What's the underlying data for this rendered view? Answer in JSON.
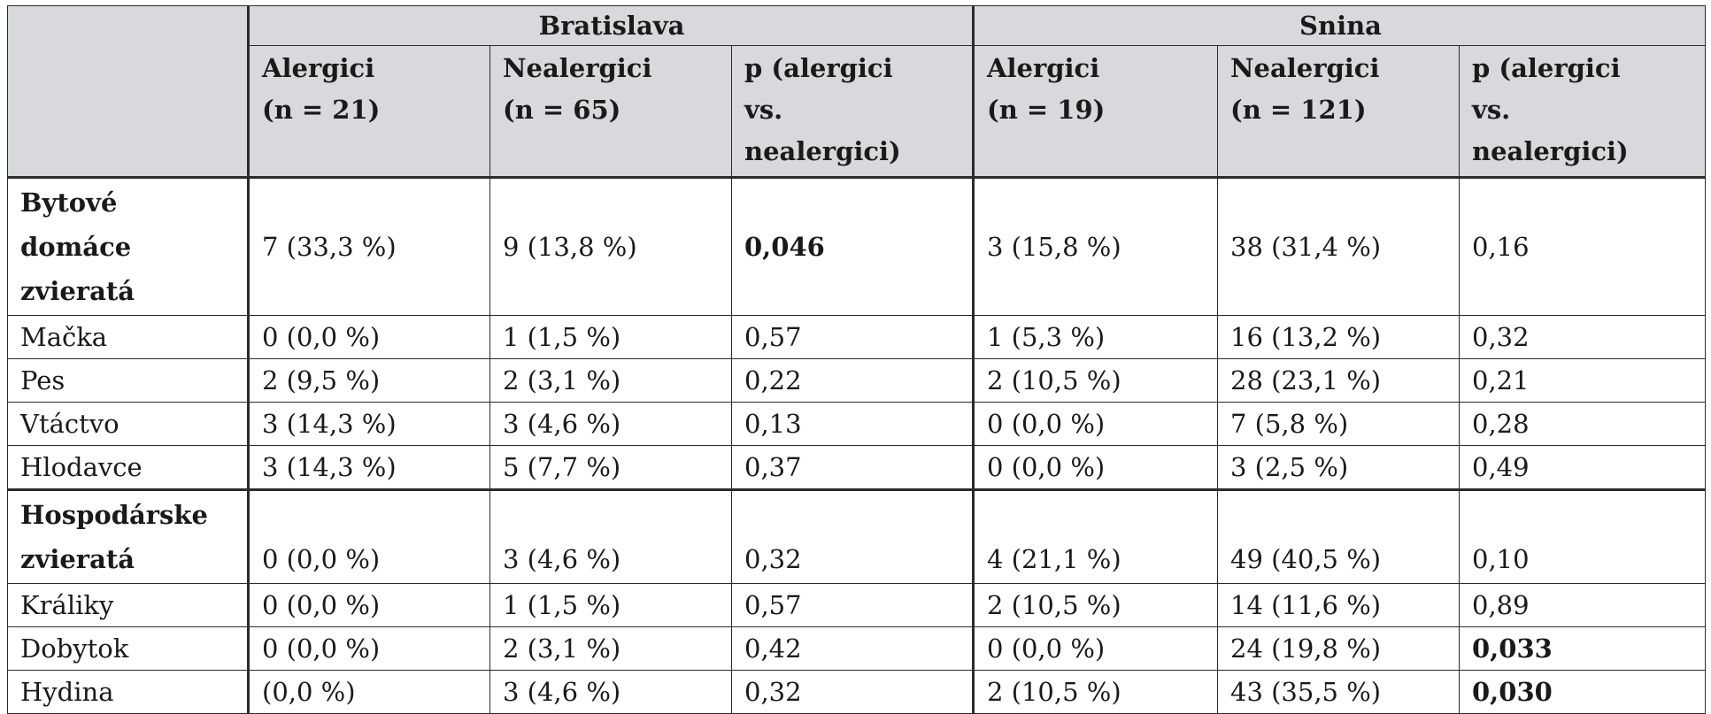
{
  "table": {
    "groups": [
      {
        "label": "Bratislava"
      },
      {
        "label": "Snina"
      }
    ],
    "subheaders": [
      {
        "line1": "Alergici",
        "line2": "(n = 21)"
      },
      {
        "line1": "Nealergici",
        "line2": "(n = 65)"
      },
      {
        "line1": "p (alergici",
        "line2": "vs.",
        "line3": "nealergici)"
      },
      {
        "line1": "Alergici",
        "line2": "(n = 19)"
      },
      {
        "line1": "Nealergici",
        "line2": "(n = 121)"
      },
      {
        "line1": "p (alergici",
        "line2": "vs.",
        "line3": "nealergici)"
      }
    ],
    "rows": [
      {
        "label": "Bytové domáce zvieratá",
        "bold": true,
        "cells": [
          "7 (33,3 %)",
          "9 (13,8 %)",
          "0,046",
          "3 (15,8 %)",
          "38 (31,4 %)",
          "0,16"
        ],
        "bold_cells": [
          2
        ]
      },
      {
        "label": "Mačka",
        "cells": [
          "0 (0,0 %)",
          "1 (1,5 %)",
          "0,57",
          "1 (5,3 %)",
          "16 (13,2 %)",
          "0,32"
        ]
      },
      {
        "label": "Pes",
        "cells": [
          "2 (9,5 %)",
          "2 (3,1 %)",
          "0,22",
          "2 (10,5 %)",
          "28 (23,1 %)",
          "0,21"
        ]
      },
      {
        "label": "Vtáctvo",
        "cells": [
          "3 (14,3 %)",
          "3 (4,6 %)",
          "0,13",
          "0 (0,0 %)",
          "7 (5,8 %)",
          "0,28"
        ]
      },
      {
        "label": "Hlodavce",
        "cells": [
          "3 (14,3 %)",
          "5 (7,7 %)",
          "0,37",
          "0 (0,0 %)",
          "3 (2,5 %)",
          "0,49"
        ]
      },
      {
        "label": "Hospodárske zvieratá",
        "bold": true,
        "cells": [
          "0 (0,0 %)",
          "3 (4,6 %)",
          "0,32",
          "4 (21,1 %)",
          "49 (40,5 %)",
          "0,10"
        ]
      },
      {
        "label": "Králiky",
        "cells": [
          "0 (0,0 %)",
          "1 (1,5 %)",
          "0,57",
          "2 (10,5 %)",
          "14 (11,6 %)",
          "0,89"
        ]
      },
      {
        "label": "Dobytok",
        "cells": [
          "0 (0,0 %)",
          "2 (3,1 %)",
          "0,42",
          "0 (0,0 %)",
          "24 (19,8 %)",
          "0,033"
        ],
        "bold_cells": [
          5
        ]
      },
      {
        "label": "Hydina",
        "cells": [
          "(0,0 %)",
          "3 (4,6 %)",
          "0,32",
          "2 (10,5 %)",
          "43 (35,5 %)",
          "0,030"
        ],
        "bold_cells": [
          5
        ]
      }
    ]
  }
}
